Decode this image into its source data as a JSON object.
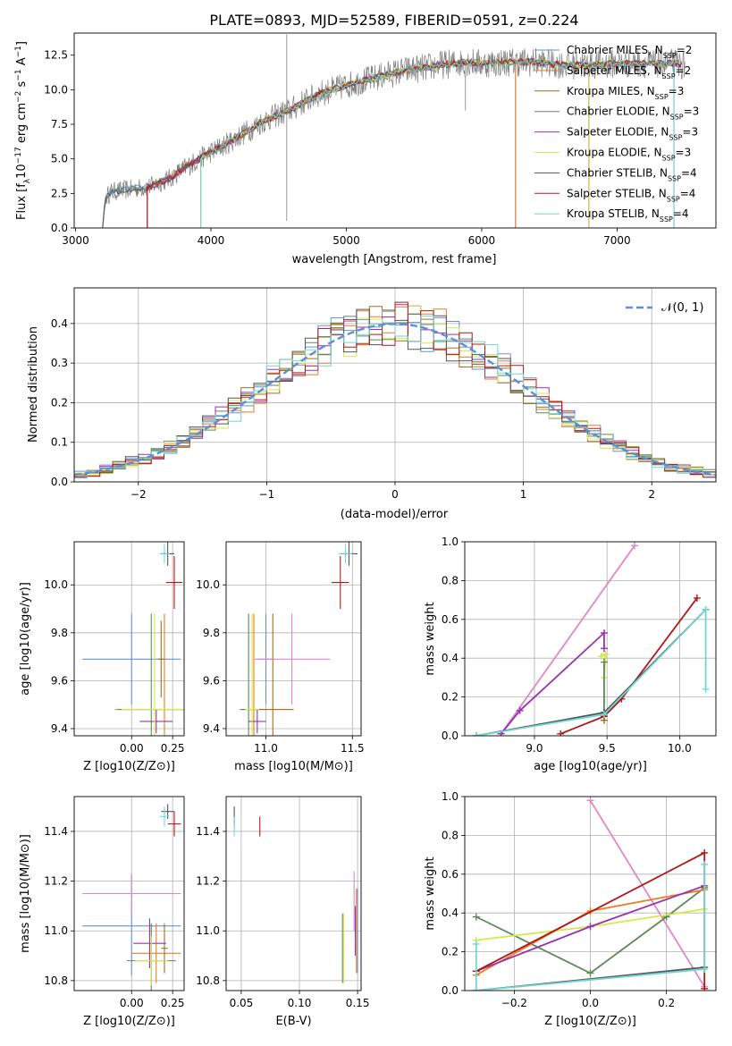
{
  "figure_title": "PLATE=0893, MJD=52589, FIBERID=0591, z=0.224",
  "series": [
    {
      "key": "chabrier_miles",
      "color": "#6a8fe0",
      "legend": "Chabrier MILES, N$_{SSP}$=2",
      "legend_main": "Chabrier MILES, N",
      "legend_sub": "SSP",
      "legend_tail": "=2"
    },
    {
      "key": "salpeter_miles",
      "color": "#e67e22",
      "legend": "Salpeter MILES, N$_{SSP}$=2",
      "legend_main": "Salpeter MILES, N",
      "legend_sub": "SSP",
      "legend_tail": "=2"
    },
    {
      "key": "kroupa_miles",
      "color": "#a0701e",
      "legend": "Kroupa MILES, N$_{SSP}$=3",
      "legend_main": "Kroupa MILES, N",
      "legend_sub": "SSP",
      "legend_tail": "=3"
    },
    {
      "key": "chabrier_elodie",
      "color": "#5a8a55",
      "legend": "Chabrier ELODIE, N$_{SSP}$=3",
      "legend_main": "Chabrier ELODIE, N",
      "legend_sub": "SSP",
      "legend_tail": "=3"
    },
    {
      "key": "salpeter_elodie",
      "color": "#9b30b0",
      "legend": "Salpeter ELODIE, N$_{SSP}$=3",
      "legend_main": "Salpeter ELODIE, N",
      "legend_sub": "SSP",
      "legend_tail": "=3"
    },
    {
      "key": "kroupa_elodie",
      "color": "#d6e84a",
      "legend": "Kroupa ELODIE, N$_{SSP}$=3",
      "legend_main": "Kroupa ELODIE, N",
      "legend_sub": "SSP",
      "legend_tail": "=3"
    },
    {
      "key": "chabrier_stelib",
      "color": "#555555",
      "legend": "Chabrier STELIB, N$_{SSP}$=4",
      "legend_main": "Chabrier STELIB, N",
      "legend_sub": "SSP",
      "legend_tail": "=4"
    },
    {
      "key": "salpeter_stelib",
      "color": "#b01818",
      "legend": "Salpeter STELIB, N$_{SSP}$=4",
      "legend_main": "Salpeter STELIB, N",
      "legend_sub": "SSP",
      "legend_tail": "=4"
    },
    {
      "key": "kroupa_stelib",
      "color": "#6fd6d6",
      "legend": "Kroupa STELIB, N$_{SSP}$=4",
      "legend_main": "Kroupa STELIB, N",
      "legend_sub": "SSP",
      "legend_tail": "=4"
    }
  ],
  "chart_data": [
    {
      "id": "spectrum",
      "type": "line",
      "title": "PLATE=0893, MJD=52589, FIBERID=0591, z=0.224",
      "xlabel": "wavelength [Angstrom, rest frame]",
      "ylabel": "Flux [f_λ 10^-17 erg cm^-2 s^-1 A^-1]",
      "xlim": [
        2990,
        7730
      ],
      "ylim": [
        0,
        14.1
      ],
      "xticks": [
        3000,
        4000,
        5000,
        6000,
        7000
      ],
      "yticks": [
        0.0,
        2.5,
        5.0,
        7.5,
        10.0,
        12.5
      ],
      "xtick_labels": [
        "3000",
        "4000",
        "5000",
        "6000",
        "7000"
      ],
      "ytick_labels": [
        "0.0",
        "2.5",
        "5.0",
        "7.5",
        "10.0",
        "12.5"
      ],
      "continuum": [
        [
          3200,
          0
        ],
        [
          3220,
          2.2
        ],
        [
          3260,
          2.6
        ],
        [
          3400,
          2.8
        ],
        [
          3550,
          3.0
        ],
        [
          3700,
          3.6
        ],
        [
          3800,
          4.3
        ],
        [
          3900,
          4.9
        ],
        [
          4000,
          5.5
        ],
        [
          4100,
          6.0
        ],
        [
          4200,
          6.6
        ],
        [
          4300,
          7.2
        ],
        [
          4400,
          7.8
        ],
        [
          4500,
          8.2
        ],
        [
          4600,
          8.6
        ],
        [
          4700,
          9.2
        ],
        [
          4800,
          9.7
        ],
        [
          4900,
          10.0
        ],
        [
          5000,
          10.3
        ],
        [
          5100,
          10.6
        ],
        [
          5200,
          10.8
        ],
        [
          5300,
          11.1
        ],
        [
          5400,
          11.3
        ],
        [
          5500,
          11.5
        ],
        [
          5600,
          11.6
        ],
        [
          5700,
          11.8
        ],
        [
          5800,
          11.9
        ],
        [
          5900,
          12.0
        ],
        [
          6000,
          11.9
        ],
        [
          6200,
          12.0
        ],
        [
          6400,
          12.0
        ],
        [
          6600,
          11.8
        ],
        [
          6800,
          11.8
        ],
        [
          7000,
          11.9
        ],
        [
          7200,
          11.9
        ],
        [
          7400,
          11.9
        ],
        [
          7500,
          11.8
        ]
      ],
      "dips": [
        [
          3530,
          0
        ],
        [
          3925,
          0
        ],
        [
          4560,
          0.5
        ],
        [
          5880,
          8.5
        ],
        [
          6250,
          0
        ],
        [
          6790,
          0
        ],
        [
          7420,
          0
        ]
      ],
      "grid": false,
      "legend_loc": "upper right"
    },
    {
      "id": "residuals",
      "type": "step",
      "xlabel": "(data-model)/error",
      "ylabel": "Normed distribution",
      "xlim": [
        -2.5,
        2.5
      ],
      "ylim": [
        0,
        0.49
      ],
      "xticks": [
        -2,
        -1,
        0,
        1,
        2
      ],
      "yticks": [
        0.0,
        0.1,
        0.2,
        0.3,
        0.4
      ],
      "xtick_labels": [
        "−2",
        "−1",
        "0",
        "1",
        "2"
      ],
      "ytick_labels": [
        "0.0",
        "0.1",
        "0.2",
        "0.3",
        "0.4"
      ],
      "grid": true,
      "reference": {
        "name": "𝒩(0, 1)",
        "mu": 0,
        "sigma": 1
      },
      "bin_width": 0.1
    },
    {
      "id": "age_Z",
      "type": "errorbar",
      "xlabel": "Z [log10(Z/Z⊙)]",
      "ylabel": "age [log10(age/yr)]",
      "xlim": [
        -0.35,
        0.32
      ],
      "ylim": [
        9.37,
        10.18
      ],
      "xticks": [
        0.0,
        0.25
      ],
      "yticks": [
        9.4,
        9.6,
        9.8,
        10.0
      ],
      "xtick_labels": [
        "0.00",
        "0.25"
      ],
      "ytick_labels": [
        "9.4",
        "9.6",
        "9.8",
        "10.0"
      ],
      "points": [
        {
          "s": 0,
          "x": 0.0,
          "y": 9.69,
          "xe": 0.3,
          "ye": 0.19
        },
        {
          "s": 1,
          "x": 0.2,
          "y": 9.48,
          "xe": 0.3,
          "ye": 0.4
        },
        {
          "s": 2,
          "x": 0.18,
          "y": 9.69,
          "xe": 0.02,
          "ye": 0.16
        },
        {
          "s": 3,
          "x": 0.12,
          "y": 9.48,
          "xe": 0.2,
          "ye": 0.4
        },
        {
          "s": 4,
          "x": 0.15,
          "y": 9.43,
          "xe": 0.1,
          "ye": 0.05
        },
        {
          "s": 5,
          "x": 0.14,
          "y": 9.48,
          "xe": 0.2,
          "ye": 0.4
        },
        {
          "s": 6,
          "x": 0.22,
          "y": 10.13,
          "xe": 0.04,
          "ye": 0.05
        },
        {
          "s": 7,
          "x": 0.26,
          "y": 10.01,
          "xe": 0.05,
          "ye": 0.11
        },
        {
          "s": 8,
          "x": 0.2,
          "y": 10.13,
          "xe": 0.03,
          "ye": 0.04
        }
      ]
    },
    {
      "id": "age_mass",
      "type": "errorbar",
      "xlabel": "mass [log10(M/M⊙)]",
      "ylabel": "",
      "xlim": [
        10.77,
        11.55
      ],
      "ylim": [
        9.37,
        10.18
      ],
      "xticks": [
        11.0,
        11.5
      ],
      "yticks": [
        9.4,
        9.6,
        9.8,
        10.0
      ],
      "xtick_labels": [
        "11.0",
        "11.5"
      ],
      "ytick_labels": [
        "9.4",
        "9.6",
        "9.8",
        "10.0"
      ],
      "points": [
        {
          "s": 0,
          "x": 11.0,
          "y": 9.69,
          "xe": 0.05,
          "ye": 0.19
        },
        {
          "s": 1,
          "x": 10.93,
          "y": 9.48,
          "xe": 0.08,
          "ye": 0.4
        },
        {
          "s": 2,
          "x": 11.04,
          "y": 9.48,
          "xe": 0.12,
          "ye": 0.4
        },
        {
          "s": 3,
          "x": 10.9,
          "y": 9.48,
          "xe": 0.05,
          "ye": 0.4
        },
        {
          "s": 4,
          "x": 10.95,
          "y": 9.43,
          "xe": 0.05,
          "ye": 0.05
        },
        {
          "s": 5,
          "x": 10.92,
          "y": 9.48,
          "xe": 0.04,
          "ye": 0.4
        },
        {
          "s": 6,
          "x": 11.48,
          "y": 10.13,
          "xe": 0.05,
          "ye": 0.05
        },
        {
          "s": 7,
          "x": 11.43,
          "y": 10.01,
          "xe": 0.05,
          "ye": 0.11
        },
        {
          "s": 8,
          "x": 11.46,
          "y": 10.13,
          "xe": 0.04,
          "ye": 0.04
        },
        {
          "s": "pink",
          "x": 11.15,
          "y": 9.69,
          "xe": 0.22,
          "ye": 0.19
        }
      ]
    },
    {
      "id": "weight_age",
      "type": "line",
      "xlabel": "age [log10(age/yr)]",
      "ylabel": "mass weight",
      "xlim": [
        8.52,
        10.25
      ],
      "ylim": [
        0,
        1.0
      ],
      "xticks": [
        9.0,
        9.5,
        10.0
      ],
      "yticks": [
        0.0,
        0.2,
        0.4,
        0.6,
        0.8,
        1.0
      ],
      "xtick_labels": [
        "9.0",
        "9.5",
        "10.0"
      ],
      "ytick_labels": [
        "0.0",
        "0.2",
        "0.4",
        "0.6",
        "0.8",
        "1.0"
      ],
      "grid": true,
      "lines": [
        {
          "color": "#e087c4",
          "pts": [
            [
              8.77,
              0.01
            ],
            [
              9.69,
              0.98
            ]
          ]
        },
        {
          "color": "#9b30b0",
          "pts": [
            [
              8.77,
              0.01
            ],
            [
              8.9,
              0.13
            ],
            [
              9.48,
              0.53
            ],
            [
              9.48,
              0.45
            ]
          ]
        },
        {
          "color": "#d6e84a",
          "pts": [
            [
              9.46,
              0.41
            ],
            [
              9.49,
              0.42
            ],
            [
              9.48,
              0.3
            ]
          ]
        },
        {
          "color": "#5a8a55",
          "pts": [
            [
              9.48,
              0.38
            ],
            [
              9.48,
              0.12
            ]
          ]
        },
        {
          "color": "#b01818",
          "pts": [
            [
              9.18,
              0.01
            ],
            [
              9.48,
              0.1
            ],
            [
              9.6,
              0.19
            ],
            [
              10.12,
              0.71
            ]
          ]
        },
        {
          "color": "#a0701e",
          "pts": [
            [
              9.48,
              0.08
            ],
            [
              9.48,
              0.11
            ]
          ]
        },
        {
          "color": "#555555",
          "pts": [
            [
              8.6,
              0.0
            ],
            [
              9.48,
              0.12
            ],
            [
              10.18,
              0.65
            ]
          ]
        },
        {
          "color": "#6fd6d6",
          "pts": [
            [
              8.6,
              0.0
            ],
            [
              9.48,
              0.11
            ],
            [
              10.18,
              0.65
            ],
            [
              10.18,
              0.24
            ]
          ]
        }
      ]
    },
    {
      "id": "mass_Z",
      "type": "errorbar",
      "xlabel": "Z [log10(Z/Z⊙)]",
      "ylabel": "mass [log10(M/M⊙)]",
      "xlim": [
        -0.35,
        0.32
      ],
      "ylim": [
        10.76,
        11.54
      ],
      "xticks": [
        0.0,
        0.25
      ],
      "yticks": [
        10.8,
        11.0,
        11.2,
        11.4
      ],
      "xtick_labels": [
        "0.00",
        "0.25"
      ],
      "ytick_labels": [
        "10.8",
        "11.0",
        "11.2",
        "11.4"
      ],
      "points": [
        {
          "s": 0,
          "x": 0.0,
          "y": 11.02,
          "xe": 0.3,
          "ye": 0.2
        },
        {
          "s": 1,
          "x": 0.15,
          "y": 10.91,
          "xe": 0.15,
          "ye": 0.12
        },
        {
          "s": 2,
          "x": 0.2,
          "y": 10.93,
          "xe": 0.02,
          "ye": 0.1
        },
        {
          "s": 3,
          "x": 0.12,
          "y": 10.88,
          "xe": 0.15,
          "ye": 0.15
        },
        {
          "s": 4,
          "x": 0.11,
          "y": 10.95,
          "xe": 0.1,
          "ye": 0.1
        },
        {
          "s": 5,
          "x": 0.12,
          "y": 10.88,
          "xe": 0.1,
          "ye": 0.1
        },
        {
          "s": 6,
          "x": 0.22,
          "y": 11.48,
          "xe": 0.04,
          "ye": 0.03
        },
        {
          "s": 7,
          "x": 0.26,
          "y": 11.43,
          "xe": 0.04,
          "ye": 0.05
        },
        {
          "s": 8,
          "x": 0.2,
          "y": 11.46,
          "xe": 0.03,
          "ye": 0.04
        },
        {
          "s": "pink",
          "x": 0.0,
          "y": 11.15,
          "xe": 0.3,
          "ye": 0.08
        }
      ]
    },
    {
      "id": "mass_ebv",
      "type": "errorbar",
      "xlabel": "E(B-V)",
      "ylabel": "",
      "xlim": [
        0.037,
        0.153
      ],
      "ylim": [
        10.76,
        11.54
      ],
      "xticks": [
        0.05,
        0.1,
        0.15
      ],
      "yticks": [
        10.8,
        11.0,
        11.2,
        11.4
      ],
      "xtick_labels": [
        "0.05",
        "0.10",
        "0.15"
      ],
      "ytick_labels": [
        "10.8",
        "11.0",
        "11.2",
        "11.4"
      ],
      "points": [
        {
          "s": 0,
          "x": 0.15,
          "y": 11.0,
          "xe": 0,
          "ye": 0.17
        },
        {
          "s": 1,
          "x": 0.149,
          "y": 11.0,
          "xe": 0,
          "ye": 0.17
        },
        {
          "s": 3,
          "x": 0.137,
          "y": 10.93,
          "xe": 0,
          "ye": 0.14
        },
        {
          "s": 4,
          "x": 0.148,
          "y": 11.0,
          "xe": 0,
          "ye": 0.1
        },
        {
          "s": 5,
          "x": 0.138,
          "y": 10.93,
          "xe": 0,
          "ye": 0.14
        },
        {
          "s": 6,
          "x": 0.044,
          "y": 11.46,
          "xe": 0,
          "ye": 0.04
        },
        {
          "s": 7,
          "x": 0.066,
          "y": 11.42,
          "xe": 0,
          "ye": 0.04
        },
        {
          "s": 8,
          "x": 0.044,
          "y": 11.42,
          "xe": 0,
          "ye": 0.04
        },
        {
          "s": "pink",
          "x": 0.147,
          "y": 11.12,
          "xe": 0,
          "ye": 0.12
        }
      ]
    },
    {
      "id": "weight_Z",
      "type": "line",
      "xlabel": "Z [log10(Z/Z⊙)]",
      "ylabel": "mass weight",
      "xlim": [
        -0.33,
        0.33
      ],
      "ylim": [
        0,
        1.0
      ],
      "xticks": [
        -0.2,
        0.0,
        0.2
      ],
      "yticks": [
        0.0,
        0.2,
        0.4,
        0.6,
        0.8,
        1.0
      ],
      "xtick_labels": [
        "−0.2",
        "0.0",
        "0.2"
      ],
      "ytick_labels": [
        "0.0",
        "0.2",
        "0.4",
        "0.6",
        "0.8",
        "1.0"
      ],
      "grid": true,
      "lines": [
        {
          "color": "#e087c4",
          "pts": [
            [
              0.0,
              0.98
            ],
            [
              0.3,
              0.02
            ]
          ]
        },
        {
          "color": "#5a8a55",
          "pts": [
            [
              -0.3,
              0.38
            ],
            [
              0.0,
              0.09
            ],
            [
              0.2,
              0.38
            ],
            [
              0.3,
              0.53
            ]
          ]
        },
        {
          "color": "#d6e84a",
          "pts": [
            [
              -0.3,
              0.26
            ],
            [
              0.0,
              0.33
            ],
            [
              0.3,
              0.42
            ]
          ]
        },
        {
          "color": "#e67e22",
          "pts": [
            [
              -0.3,
              0.08
            ],
            [
              0.0,
              0.41
            ],
            [
              0.3,
              0.52
            ]
          ]
        },
        {
          "color": "#9b30b0",
          "pts": [
            [
              -0.3,
              0.1
            ],
            [
              0.0,
              0.33
            ],
            [
              0.3,
              0.54
            ]
          ]
        },
        {
          "color": "#b01818",
          "pts": [
            [
              -0.3,
              0.1
            ],
            [
              0.3,
              0.71
            ],
            [
              0.3,
              0.01
            ]
          ]
        },
        {
          "color": "#555555",
          "pts": [
            [
              -0.3,
              0.0
            ],
            [
              0.3,
              0.12
            ]
          ]
        },
        {
          "color": "#6fd6d6",
          "pts": [
            [
              -0.3,
              0.24
            ],
            [
              -0.3,
              0.0
            ],
            [
              0.3,
              0.11
            ],
            [
              0.3,
              0.65
            ]
          ]
        }
      ]
    }
  ]
}
